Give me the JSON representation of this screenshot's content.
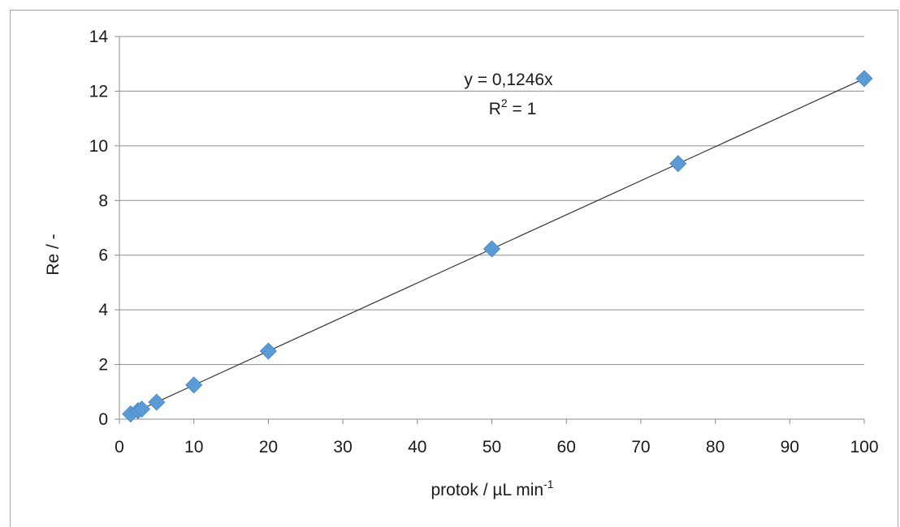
{
  "chart_data": {
    "type": "scatter",
    "title": "",
    "xlabel": "protok / µL min",
    "xlabel_superscript": "-1",
    "ylabel": "Re / -",
    "xlim": [
      0,
      100
    ],
    "ylim": [
      0,
      14
    ],
    "xticks": [
      0,
      10,
      20,
      30,
      40,
      50,
      60,
      70,
      80,
      90,
      100
    ],
    "yticks": [
      0,
      2,
      4,
      6,
      8,
      10,
      12,
      14
    ],
    "grid": "horizontal",
    "legend": "none",
    "series": [
      {
        "marker": "diamond",
        "color": "#5b9bd5",
        "x": [
          1.5,
          2.5,
          3,
          5,
          10,
          20,
          50,
          75,
          100
        ],
        "y": [
          0.19,
          0.31,
          0.37,
          0.62,
          1.25,
          2.49,
          6.23,
          9.35,
          12.46
        ]
      }
    ],
    "trendline": {
      "type": "linear",
      "slope": 0.1246,
      "intercept": 0,
      "x_range": [
        1.5,
        100
      ],
      "color": "#333333"
    },
    "annotations": {
      "equation": "y = 0,1246x",
      "r2_prefix": "R",
      "r2_superscript": "2",
      "r2_suffix": " = 1"
    }
  }
}
